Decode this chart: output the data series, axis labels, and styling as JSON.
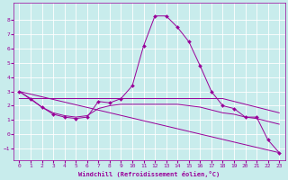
{
  "xlabel": "Windchill (Refroidissement éolien,°C)",
  "xlim": [
    -0.5,
    23.5
  ],
  "ylim": [
    -1.8,
    9.2
  ],
  "yticks": [
    -1,
    0,
    1,
    2,
    3,
    4,
    5,
    6,
    7,
    8
  ],
  "xticks": [
    0,
    1,
    2,
    3,
    4,
    5,
    6,
    7,
    8,
    9,
    10,
    11,
    12,
    13,
    14,
    15,
    16,
    17,
    18,
    19,
    20,
    21,
    22,
    23
  ],
  "bg_color": "#c8ecec",
  "line_color": "#990099",
  "grid_color": "#ffffff",
  "line1": {
    "x": [
      0,
      1,
      2,
      3,
      4,
      5,
      6,
      7,
      8,
      9,
      10,
      11,
      12,
      13,
      14,
      15,
      16,
      17,
      18,
      19,
      20,
      21,
      22,
      23
    ],
    "y": [
      3.0,
      2.5,
      1.9,
      1.4,
      1.2,
      1.1,
      1.2,
      2.3,
      2.2,
      2.5,
      3.4,
      6.2,
      8.3,
      8.3,
      7.5,
      6.5,
      4.8,
      3.0,
      2.0,
      1.8,
      1.2,
      1.2,
      -0.4,
      -1.3
    ],
    "marker": "D",
    "markersize": 2.0
  },
  "line2": {
    "x": [
      0,
      6,
      18,
      23
    ],
    "y": [
      2.5,
      2.5,
      2.5,
      1.5
    ],
    "marker": null
  },
  "line3": {
    "x": [
      0,
      23
    ],
    "y": [
      3.0,
      -1.3
    ],
    "marker": null
  },
  "line4": {
    "x": [
      0,
      2,
      3,
      4,
      5,
      6,
      7,
      8,
      9,
      10,
      11,
      12,
      13,
      14,
      15,
      16,
      17,
      18,
      19,
      20,
      21,
      22,
      23
    ],
    "y": [
      3.0,
      1.9,
      1.5,
      1.3,
      1.2,
      1.3,
      1.8,
      2.0,
      2.1,
      2.1,
      2.1,
      2.1,
      2.1,
      2.1,
      2.0,
      1.9,
      1.7,
      1.5,
      1.4,
      1.2,
      1.1,
      0.9,
      0.7
    ],
    "marker": null
  }
}
